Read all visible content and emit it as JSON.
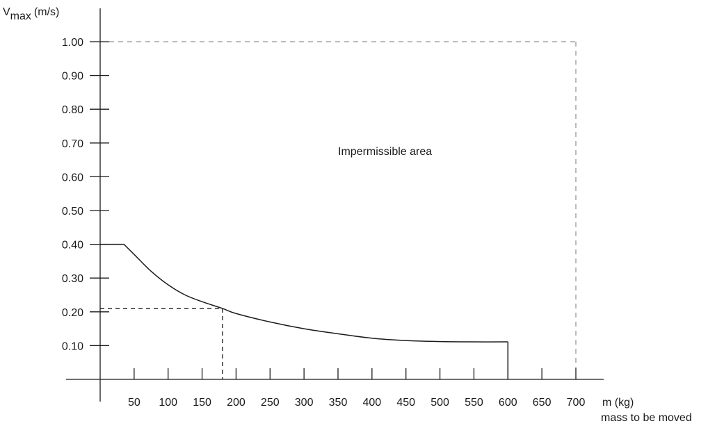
{
  "chart_data": {
    "type": "line",
    "y_axis_label": "V",
    "y_axis_label_sub": "max",
    "y_axis_unit": "(m/s)",
    "x_axis_label": "m (kg)",
    "x_axis_sublabel": "mass to be moved",
    "x_ticks": [
      "50",
      "100",
      "150",
      "200",
      "250",
      "300",
      "350",
      "400",
      "450",
      "500",
      "550",
      "600",
      "650",
      "700"
    ],
    "x_tick_values": [
      50,
      100,
      150,
      200,
      250,
      300,
      350,
      400,
      450,
      500,
      550,
      600,
      650,
      700
    ],
    "y_ticks": [
      "0.10",
      "0.20",
      "0.30",
      "0.40",
      "0.50",
      "0.60",
      "0.70",
      "0.80",
      "0.90",
      "1.00"
    ],
    "y_tick_values": [
      0.1,
      0.2,
      0.3,
      0.4,
      0.5,
      0.6,
      0.7,
      0.8,
      0.9,
      1.0
    ],
    "xlim": [
      0,
      740
    ],
    "ylim": [
      0,
      1.05
    ],
    "annotation": "Impermissible area",
    "annotation_position": {
      "x": 350,
      "y": 0.665
    },
    "series": [
      {
        "x": [
          0,
          35,
          50,
          75,
          100,
          125,
          150,
          180,
          200,
          250,
          300,
          350,
          400,
          450,
          500,
          550,
          600
        ],
        "y": [
          0.4,
          0.4,
          0.37,
          0.32,
          0.28,
          0.25,
          0.23,
          0.21,
          0.195,
          0.17,
          0.15,
          0.135,
          0.122,
          0.115,
          0.112,
          0.111,
          0.111
        ]
      }
    ],
    "curve_end_drop": {
      "x": 600,
      "y": 0.111
    },
    "reference_point": {
      "x": 180,
      "y": 0.21
    },
    "boundary": {
      "x": 700,
      "y": 1.0
    },
    "grid": false
  }
}
